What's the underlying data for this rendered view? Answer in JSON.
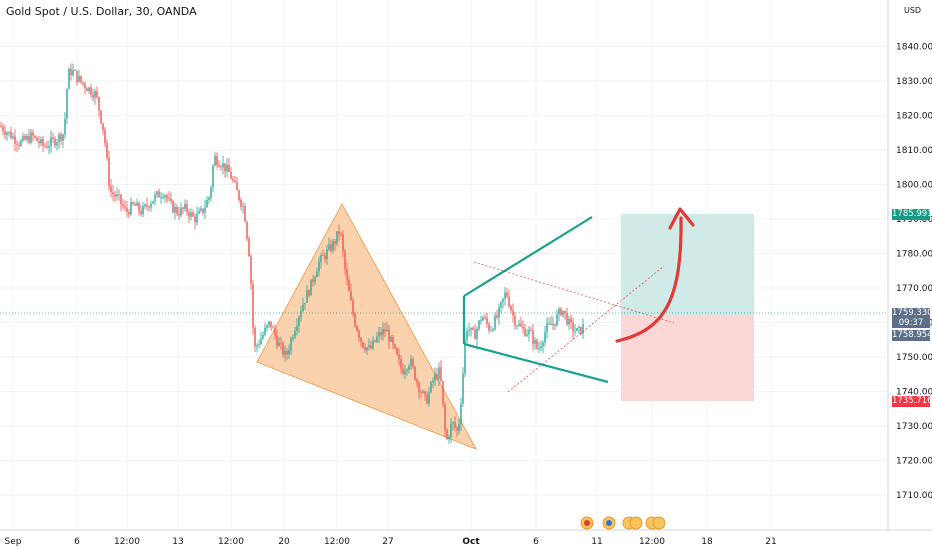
{
  "header": {
    "title": "Gold Spot / U.S. Dollar, 30, OANDA",
    "currency": "USD"
  },
  "colors": {
    "up": "#26a69a",
    "down": "#ef5350",
    "triangle_fill": "#f9cba0",
    "triangle_stroke": "#f5a15a",
    "channel": "#1aa28e",
    "target_zone": "#cfeae7",
    "stop_zone": "#fbd7d8",
    "arrow": "#e53935",
    "current_tag": "#5b6f8a",
    "target_tag": "#169b88",
    "stop_tag": "#f23645"
  },
  "chart_data": {
    "type": "candlestick",
    "yaxis": {
      "ticks": [
        "1710.000",
        "1720.000",
        "1730.000",
        "1740.000",
        "1750.000",
        "1760.000",
        "1770.000",
        "1780.000",
        "1790.000",
        "1800.000",
        "1810.000",
        "1820.000",
        "1830.000",
        "1840.000"
      ],
      "range": [
        1701,
        1843
      ]
    },
    "xaxis": {
      "ticks": [
        "Sep",
        "6",
        "12:00",
        "13",
        "12:00",
        "20",
        "12:00",
        "27",
        "Oct",
        "6",
        "11",
        "12:00",
        "18",
        "21"
      ]
    },
    "price_path": [
      [
        0,
        1817
      ],
      [
        8,
        1815
      ],
      [
        20,
        1812
      ],
      [
        32,
        1814
      ],
      [
        44,
        1811
      ],
      [
        56,
        1813
      ],
      [
        64,
        1815
      ],
      [
        68,
        1832
      ],
      [
        72,
        1833
      ],
      [
        80,
        1830
      ],
      [
        88,
        1828
      ],
      [
        96,
        1826
      ],
      [
        104,
        1815
      ],
      [
        110,
        1798
      ],
      [
        118,
        1796
      ],
      [
        126,
        1792
      ],
      [
        134,
        1794
      ],
      [
        142,
        1792
      ],
      [
        150,
        1795
      ],
      [
        158,
        1797
      ],
      [
        164,
        1798
      ],
      [
        170,
        1794
      ],
      [
        178,
        1792
      ],
      [
        186,
        1793
      ],
      [
        194,
        1790
      ],
      [
        202,
        1792
      ],
      [
        210,
        1797
      ],
      [
        214,
        1808
      ],
      [
        222,
        1806
      ],
      [
        230,
        1803
      ],
      [
        238,
        1797
      ],
      [
        244,
        1793
      ],
      [
        250,
        1778
      ],
      [
        254,
        1752
      ],
      [
        262,
        1756
      ],
      [
        270,
        1760
      ],
      [
        278,
        1754
      ],
      [
        286,
        1750
      ],
      [
        294,
        1758
      ],
      [
        302,
        1765
      ],
      [
        310,
        1770
      ],
      [
        318,
        1777
      ],
      [
        326,
        1780
      ],
      [
        334,
        1783
      ],
      [
        340,
        1787
      ],
      [
        346,
        1773
      ],
      [
        354,
        1761
      ],
      [
        362,
        1754
      ],
      [
        370,
        1752
      ],
      [
        378,
        1756
      ],
      [
        386,
        1758
      ],
      [
        394,
        1752
      ],
      [
        402,
        1746
      ],
      [
        410,
        1749
      ],
      [
        418,
        1742
      ],
      [
        426,
        1737
      ],
      [
        434,
        1744
      ],
      [
        440,
        1746
      ],
      [
        446,
        1725
      ],
      [
        452,
        1731
      ],
      [
        458,
        1728
      ],
      [
        462,
        1741
      ],
      [
        466,
        1759
      ],
      [
        474,
        1756
      ],
      [
        482,
        1762
      ],
      [
        490,
        1758
      ],
      [
        498,
        1762
      ],
      [
        506,
        1769
      ],
      [
        514,
        1761
      ],
      [
        522,
        1758
      ],
      [
        530,
        1757
      ],
      [
        538,
        1752
      ],
      [
        546,
        1758
      ],
      [
        554,
        1760
      ],
      [
        562,
        1764
      ],
      [
        570,
        1759
      ],
      [
        578,
        1757
      ],
      [
        584,
        1759
      ]
    ],
    "current_price": "1759.330",
    "countdown": "09:37",
    "bid_price": "1758.954",
    "target_price": "1785.991",
    "stop_price": "1735.716"
  }
}
